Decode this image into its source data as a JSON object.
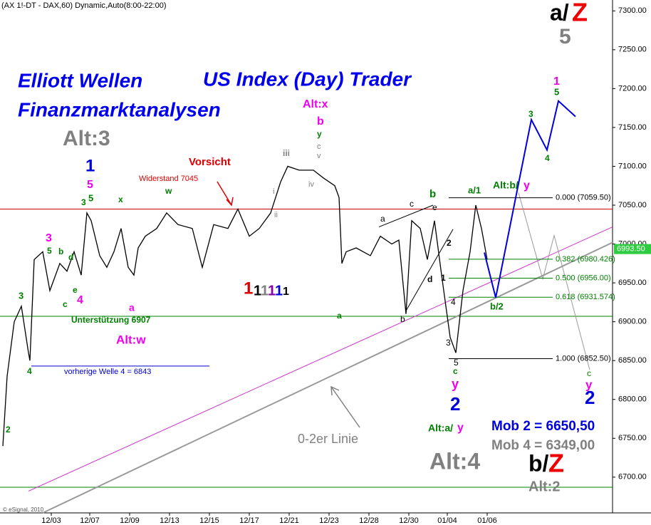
{
  "chart_data": {
    "type": "line",
    "header": "(AX 1!-DT - DAX,60) Dynamic,Auto(8:00-22:00)",
    "copyright": "© eSignal, 2010",
    "series": [
      {
        "name": "DAX",
        "color": "#000000",
        "x": [
          2,
          5,
          10,
          15,
          20,
          21,
          24,
          30,
          35,
          42,
          47,
          52,
          57,
          61,
          64,
          70,
          75,
          80,
          85,
          90,
          94,
          97,
          102,
          110,
          117,
          125,
          135,
          142,
          150,
          160,
          167,
          175,
          182,
          190,
          197,
          202,
          210,
          220,
          227,
          235,
          238,
          240,
          243,
          250,
          260,
          267,
          275,
          280,
          285,
          289,
          295,
          300,
          305,
          310,
          316,
          320,
          325,
          330,
          334,
          338,
          342
        ],
        "values": [
          6740,
          6830,
          6900,
          6920,
          6860,
          6850,
          6980,
          6990,
          6940,
          6975,
          6965,
          6990,
          6960,
          7040,
          7030,
          6985,
          6970,
          6990,
          7020,
          6970,
          6960,
          6995,
          7010,
          7020,
          7040,
          7025,
          7020,
          6970,
          7025,
          7020,
          7045,
          7010,
          7020,
          7040,
          7080,
          7100,
          7095,
          7095,
          7085,
          7075,
          7060,
          6975,
          6990,
          6995,
          6985,
          7010,
          7000,
          7005,
          6910,
          7030,
          7020,
          6980,
          7030,
          6960,
          6880,
          6860,
          6940,
          6990,
          7050,
          7020,
          6980
        ]
      }
    ],
    "last_price": {
      "value": 6993.5,
      "label": "6993.50"
    },
    "xlim": [
      0,
      430
    ],
    "ylim": [
      6654,
      7314
    ],
    "xticks": [
      {
        "value": 36,
        "label": "12/03"
      },
      {
        "value": 63,
        "label": "12/07"
      },
      {
        "value": 91,
        "label": "12/09"
      },
      {
        "value": 119,
        "label": "12/13"
      },
      {
        "value": 147,
        "label": "12/15"
      },
      {
        "value": 175,
        "label": "12/17"
      },
      {
        "value": 203,
        "label": "12/21"
      },
      {
        "value": 231,
        "label": "12/23"
      },
      {
        "value": 259,
        "label": "12/28"
      },
      {
        "value": 287,
        "label": "12/30"
      },
      {
        "value": 314,
        "label": "01/04"
      },
      {
        "value": 342,
        "label": "01/06"
      }
    ],
    "yticks": [
      {
        "value": 6700,
        "label": "6700.00"
      },
      {
        "value": 6750,
        "label": "6750.00"
      },
      {
        "value": 6800,
        "label": "6800.00"
      },
      {
        "value": 6850,
        "label": "6850.00"
      },
      {
        "value": 6900,
        "label": "6900.00"
      },
      {
        "value": 6950,
        "label": "6950.00"
      },
      {
        "value": 7000,
        "label": "7000.00"
      },
      {
        "value": 7050,
        "label": "7050.00"
      },
      {
        "value": 7100,
        "label": "7100.00"
      },
      {
        "value": 7150,
        "label": "7150.00"
      },
      {
        "value": 7200,
        "label": "7200.00"
      },
      {
        "value": 7250,
        "label": "7250.00"
      },
      {
        "value": 7300,
        "label": "7300.00"
      }
    ],
    "levels": [
      {
        "value": 7045,
        "color": "#cc0000"
      },
      {
        "value": 6907,
        "color": "#008000"
      },
      {
        "value": 6687,
        "color": "#008000"
      }
    ],
    "prior_wave4": {
      "value": 6843,
      "color": "#0000cc",
      "x": [
        22,
        147
      ]
    },
    "fib_levels": [
      {
        "value": 7059.5,
        "label": "0.000 (7059.50)"
      },
      {
        "value": 6980.426,
        "label": "0.382 (6980.426)"
      },
      {
        "value": 6956,
        "label": "0.500 (6956.00)"
      },
      {
        "value": 6931.574,
        "label": "0.618 (6931.574)"
      },
      {
        "value": 6852.5,
        "label": "1.000 (6852.50)"
      }
    ],
    "trendlines": [
      {
        "color": "#cc33cc",
        "x": [
          20,
          430
        ],
        "y": [
          6682,
          7022
        ]
      },
      {
        "color": "#999999",
        "x": [
          30,
          430
        ],
        "y": [
          6654,
          7002
        ]
      },
      {
        "color": "#000000",
        "x": [
          266,
          304
        ],
        "y": [
          7022,
          7050
        ]
      },
      {
        "color": "#000000",
        "x": [
          285,
          318
        ],
        "y": [
          6914,
          7019
        ]
      },
      {
        "color": "#999999",
        "x": [
          364,
          381,
          389,
          414
        ],
        "y": [
          7066,
          6955,
          7011,
          6838
        ]
      }
    ],
    "projection": {
      "color": "#0000dd",
      "x": [
        340,
        348,
        365,
        373,
        384,
        392,
        404
      ],
      "y": [
        6989,
        6931,
        7087,
        7160,
        7121,
        7184,
        7164
      ]
    },
    "annotations": [
      {
        "text": "a/",
        "color": "#000000"
      },
      {
        "text": "Z",
        "color": "#ee0000"
      },
      {
        "text": "5",
        "color": "#808080"
      },
      {
        "text": "Elliott Wellen",
        "color": "#0000ee"
      },
      {
        "text": "US Index (Day) Trader",
        "color": "#0000ee"
      },
      {
        "text": "Finanzmarktanalysen",
        "color": "#0000ee"
      },
      {
        "text": "Alt:3",
        "color": "#808080"
      },
      {
        "text": "Alt:x",
        "color": "#ee00ee"
      },
      {
        "text": "b",
        "color": "#ee00ee"
      },
      {
        "text": "y",
        "color": "#008000"
      },
      {
        "text": "c",
        "color": "#808080"
      },
      {
        "text": "v",
        "color": "#808080"
      },
      {
        "text": "iii",
        "color": "#808080"
      },
      {
        "text": "iv",
        "color": "#808080"
      },
      {
        "text": "i",
        "color": "#808080"
      },
      {
        "text": "ii",
        "color": "#808080"
      },
      {
        "text": "Vorsicht",
        "color": "#dd0000"
      },
      {
        "text": "Widerstand 7045",
        "color": "#dd0000"
      },
      {
        "text": "1",
        "color": "#0000dd"
      },
      {
        "text": "5",
        "color": "#ee00ee"
      },
      {
        "text": "5",
        "color": "#008000"
      },
      {
        "text": "3",
        "color": "#008000"
      },
      {
        "text": "x",
        "color": "#008000"
      },
      {
        "text": "w",
        "color": "#008000"
      },
      {
        "text": "3",
        "color": "#ee00ee"
      },
      {
        "text": "5",
        "color": "#008000"
      },
      {
        "text": "b",
        "color": "#008000"
      },
      {
        "text": "d",
        "color": "#008000"
      },
      {
        "text": "4",
        "color": "#ee00ee"
      },
      {
        "text": "a",
        "color": "#ee00ee"
      },
      {
        "text": "e",
        "color": "#008000"
      },
      {
        "text": "c",
        "color": "#008000"
      },
      {
        "text": "3",
        "color": "#008000"
      },
      {
        "text": "4",
        "color": "#008000"
      },
      {
        "text": "2",
        "color": "#008000"
      },
      {
        "text": "Alt:w",
        "color": "#ee00ee"
      },
      {
        "text": "Unterstützung 6907",
        "color": "#008000"
      },
      {
        "text": "vorherige Welle 4 = 6843",
        "color": "#0000cc"
      },
      {
        "text": "1",
        "color": "#dd0000"
      },
      {
        "text": "1",
        "color": "#000000"
      },
      {
        "text": "1",
        "color": "#808080"
      },
      {
        "text": "1",
        "color": "#8800aa"
      },
      {
        "text": "1",
        "color": "#0000dd"
      },
      {
        "text": "1",
        "color": "#000000"
      },
      {
        "text": "a",
        "color": "#008000"
      },
      {
        "text": "b",
        "color": "#000000"
      },
      {
        "text": "a",
        "color": "#000000"
      },
      {
        "text": "c",
        "color": "#000000"
      },
      {
        "text": "e",
        "color": "#000000"
      },
      {
        "text": "b",
        "color": "#008000"
      },
      {
        "text": "2",
        "color": "#000000"
      },
      {
        "text": "d",
        "color": "#000000"
      },
      {
        "text": "1",
        "color": "#000000"
      },
      {
        "text": "4",
        "color": "#000000"
      },
      {
        "text": "3",
        "color": "#000000"
      },
      {
        "text": "5",
        "color": "#000000"
      },
      {
        "text": "c",
        "color": "#008000"
      },
      {
        "text": "y",
        "color": "#ee00ee"
      },
      {
        "text": "2",
        "color": "#0000dd"
      },
      {
        "text": "a/1",
        "color": "#008000"
      },
      {
        "text": "Alt:b/",
        "color": "#008000"
      },
      {
        "text": "y",
        "color": "#ee00ee"
      },
      {
        "text": "b/2",
        "color": "#008000"
      },
      {
        "text": "1",
        "color": "#ee00ee"
      },
      {
        "text": "5",
        "color": "#008000"
      },
      {
        "text": "3",
        "color": "#008000"
      },
      {
        "text": "4",
        "color": "#008000"
      },
      {
        "text": "c",
        "color": "#008000"
      },
      {
        "text": "y",
        "color": "#ee00ee"
      },
      {
        "text": "2",
        "color": "#0000dd"
      },
      {
        "text": "Alt:a/",
        "color": "#008000"
      },
      {
        "text": "y",
        "color": "#ee00ee"
      },
      {
        "text": "Mob 2 = 6650,50",
        "color": "#0000dd"
      },
      {
        "text": "Mob 4 = 6349,00",
        "color": "#808080"
      },
      {
        "text": "Alt:4",
        "color": "#808080"
      },
      {
        "text": "b/",
        "color": "#000000"
      },
      {
        "text": "Z",
        "color": "#ee0000"
      },
      {
        "text": "Alt:2",
        "color": "#808080"
      },
      {
        "text": "0-2er Linie",
        "color": "#808080"
      }
    ]
  }
}
